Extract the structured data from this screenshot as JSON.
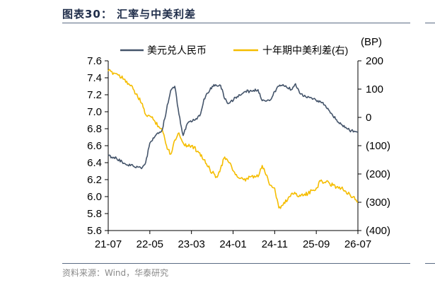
{
  "figure": {
    "title": "图表30：  汇率与中美利差",
    "source": "资料来源：Wind，华泰研究"
  },
  "colors": {
    "usdcny": "#44546a",
    "spread": "#f5bd00",
    "rule": "#5a6b84",
    "title": "#1f2d4a",
    "source": "#8a8a8a"
  },
  "chart_data": {
    "type": "line",
    "x_ticks": [
      "21-07",
      "22-05",
      "23-03",
      "24-01",
      "24-11",
      "25-09",
      "26-07"
    ],
    "x_range": [
      "21-07",
      "26-07"
    ],
    "left_axis": {
      "ylim": [
        5.6,
        7.6
      ],
      "ticks": [
        "7.6",
        "7.4",
        "7.2",
        "7.0",
        "6.8",
        "6.6",
        "6.4",
        "6.2",
        "6.0",
        "5.8",
        "5.6"
      ]
    },
    "right_axis": {
      "unit": "(BP)",
      "ylim": [
        -400,
        200
      ],
      "ticks": [
        "200",
        "100",
        "0",
        "(100)",
        "(200)",
        "(300)",
        "(400)"
      ]
    },
    "legend_position": "top",
    "series": [
      {
        "name": "美元兑人民币",
        "axis": "left",
        "x": [
          "21-07",
          "21-09",
          "21-11",
          "22-01",
          "22-03",
          "22-04",
          "22-05",
          "22-06",
          "22-08",
          "22-09",
          "22-10",
          "22-11",
          "22-12",
          "23-01",
          "23-02",
          "23-03",
          "23-05",
          "23-06",
          "23-07",
          "23-08",
          "23-09",
          "23-10",
          "23-11",
          "23-12",
          "24-02",
          "24-04",
          "24-05",
          "24-07",
          "24-08",
          "24-10",
          "24-11",
          "24-12",
          "25-01",
          "25-03",
          "25-04",
          "25-05",
          "25-06",
          "25-07",
          "25-09",
          "25-10",
          "25-11",
          "25-12",
          "26-01",
          "26-03",
          "26-05",
          "26-07"
        ],
        "values": [
          6.48,
          6.45,
          6.39,
          6.36,
          6.33,
          6.4,
          6.63,
          6.69,
          6.79,
          7.02,
          7.25,
          7.3,
          6.97,
          6.72,
          6.86,
          6.88,
          6.95,
          7.15,
          7.22,
          7.3,
          7.31,
          7.31,
          7.15,
          7.1,
          7.18,
          7.24,
          7.24,
          7.26,
          7.13,
          7.14,
          7.24,
          7.3,
          7.32,
          7.26,
          7.33,
          7.22,
          7.18,
          7.18,
          7.13,
          7.12,
          7.08,
          7.02,
          6.95,
          6.85,
          6.78,
          6.76
        ]
      },
      {
        "name": "十年期中美利差(右)",
        "axis": "right",
        "x": [
          "21-07",
          "21-09",
          "21-11",
          "22-01",
          "22-03",
          "22-04",
          "22-05",
          "22-06",
          "22-08",
          "22-09",
          "22-10",
          "22-11",
          "22-12",
          "23-01",
          "23-02",
          "23-03",
          "23-05",
          "23-06",
          "23-07",
          "23-08",
          "23-09",
          "23-10",
          "23-11",
          "23-12",
          "24-02",
          "24-04",
          "24-05",
          "24-07",
          "24-08",
          "24-10",
          "24-11",
          "24-12",
          "25-01",
          "25-03",
          "25-04",
          "25-05",
          "25-06",
          "25-07",
          "25-09",
          "25-10",
          "25-11",
          "25-12",
          "26-01",
          "26-03",
          "26-05",
          "26-07"
        ],
        "values": [
          163,
          155,
          135,
          100,
          50,
          10,
          5,
          -10,
          -45,
          -100,
          -130,
          -80,
          -55,
          -90,
          -100,
          -100,
          -125,
          -150,
          -175,
          -195,
          -210,
          -180,
          -140,
          -160,
          -210,
          -225,
          -210,
          -210,
          -170,
          -240,
          -250,
          -320,
          -310,
          -270,
          -270,
          -275,
          -275,
          -270,
          -250,
          -225,
          -230,
          -230,
          -240,
          -250,
          -270,
          -300
        ]
      }
    ]
  }
}
